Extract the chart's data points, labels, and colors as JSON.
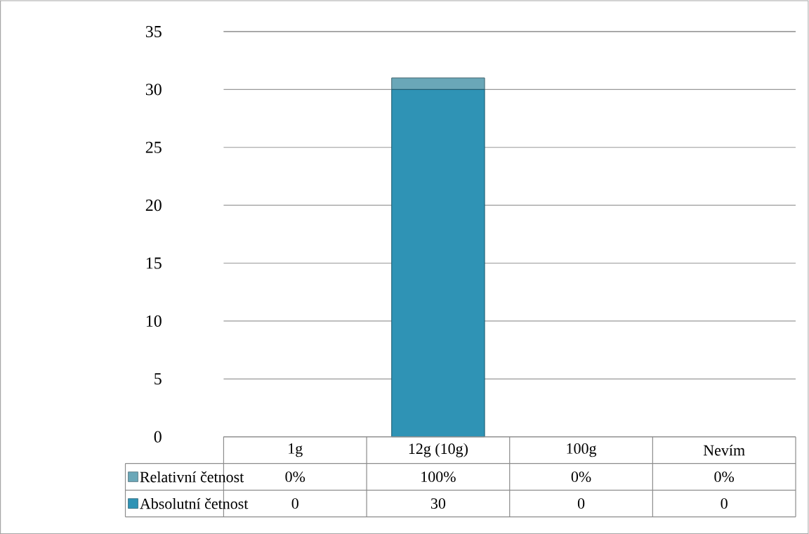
{
  "chart_data": {
    "type": "bar",
    "stacked": true,
    "categories": [
      "1g",
      "12g (10g)",
      "100g",
      "Nevím"
    ],
    "series": [
      {
        "name": "Absolutní četnost",
        "color": "#2f93b5",
        "values": [
          0,
          30,
          0,
          0
        ],
        "value_labels": [
          "0",
          "30",
          "0",
          "0"
        ]
      },
      {
        "name": "Relativní četnost",
        "color": "#6aa7b8",
        "values": [
          0,
          1,
          0,
          0
        ],
        "value_labels": [
          "0%",
          "100%",
          "0%",
          "0%"
        ]
      }
    ],
    "ylim": [
      0,
      35
    ],
    "yticks": [
      0,
      5,
      10,
      15,
      20,
      25,
      30,
      35
    ],
    "grid": "y",
    "legend": "bottom"
  }
}
